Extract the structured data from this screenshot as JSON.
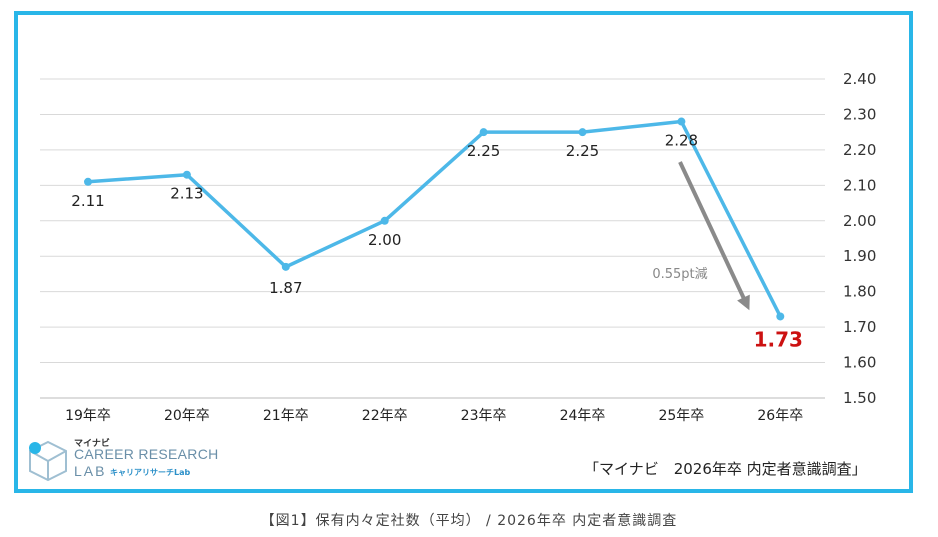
{
  "chart_data": {
    "type": "line",
    "categories": [
      "19年卒",
      "20年卒",
      "21年卒",
      "22年卒",
      "23年卒",
      "24年卒",
      "25年卒",
      "26年卒"
    ],
    "values": [
      2.11,
      2.13,
      1.87,
      2.0,
      2.25,
      2.25,
      2.28,
      1.73
    ],
    "value_labels": [
      "2.11",
      "2.13",
      "1.87",
      "2.00",
      "2.25",
      "2.25",
      "2.28",
      "1.73"
    ],
    "ylim": [
      1.5,
      2.4
    ],
    "yticks": [
      "1.50",
      "1.60",
      "1.70",
      "1.80",
      "1.90",
      "2.00",
      "2.10",
      "2.20",
      "2.30",
      "2.40"
    ],
    "y_axis_side": "right",
    "grid": true,
    "line_color": "#4db8e8",
    "highlight_color": "#cc1111",
    "annotation": {
      "text": "0.55pt減",
      "color": "#888888"
    }
  },
  "logo": {
    "top_text": "マイナビ",
    "line1": "CAREER RESEARCH",
    "line2": "LAB",
    "sub": "キャリアリサーチLab"
  },
  "source": "「マイナビ　2026年卒 内定者意識調査」",
  "caption": "【図1】保有内々定社数（平均） / 2026年卒 内定者意識調査"
}
